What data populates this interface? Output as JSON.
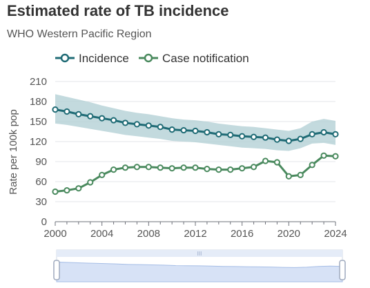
{
  "header": {
    "title": "Estimated rate of TB incidence",
    "subtitle": "WHO Western Pacific Region"
  },
  "colors": {
    "incidence": "#1f6b75",
    "notification": "#4a8a5e",
    "band": "#b9d3d8",
    "grid": "#e3e6ea",
    "slider_fill": "#d7e2f6",
    "slider_line": "#a5bde6"
  },
  "chart_data": {
    "type": "line",
    "title": "Estimated rate of TB incidence",
    "subtitle": "WHO Western Pacific Region",
    "ylabel": "Rate per 100k pop",
    "xlabel": "",
    "ylim": [
      0,
      210
    ],
    "xlim": [
      2000,
      2024
    ],
    "yticks": [
      0,
      30,
      60,
      90,
      120,
      150,
      180,
      210
    ],
    "xticks": [
      2000,
      2004,
      2008,
      2012,
      2016,
      2020,
      2024
    ],
    "grid": true,
    "legend": "top",
    "x": [
      2000,
      2001,
      2002,
      2003,
      2004,
      2005,
      2006,
      2007,
      2008,
      2009,
      2010,
      2011,
      2012,
      2013,
      2014,
      2015,
      2016,
      2017,
      2018,
      2019,
      2020,
      2021,
      2022,
      2023,
      2024
    ],
    "series": [
      {
        "name": "Incidence",
        "values": [
          168,
          165,
          161,
          158,
          155,
          152,
          148,
          146,
          144,
          142,
          138,
          137,
          136,
          134,
          131,
          130,
          128,
          127,
          126,
          123,
          121,
          124,
          131,
          134,
          131
        ],
        "lower": [
          147,
          145,
          142,
          139,
          136,
          133,
          130,
          128,
          126,
          124,
          121,
          120,
          119,
          117,
          115,
          113,
          111,
          110,
          109,
          107,
          106,
          110,
          117,
          118,
          115
        ],
        "upper": [
          191,
          187,
          183,
          179,
          174,
          170,
          166,
          163,
          161,
          158,
          155,
          153,
          152,
          150,
          147,
          145,
          143,
          142,
          140,
          138,
          136,
          140,
          150,
          154,
          151
        ]
      },
      {
        "name": "Case notification",
        "values": [
          45,
          47,
          50,
          59,
          70,
          78,
          81,
          82,
          82,
          81,
          80,
          81,
          81,
          79,
          78,
          78,
          80,
          82,
          91,
          89,
          68,
          70,
          85,
          99,
          98
        ]
      }
    ]
  },
  "slider": {
    "handle_glyph": "III"
  }
}
